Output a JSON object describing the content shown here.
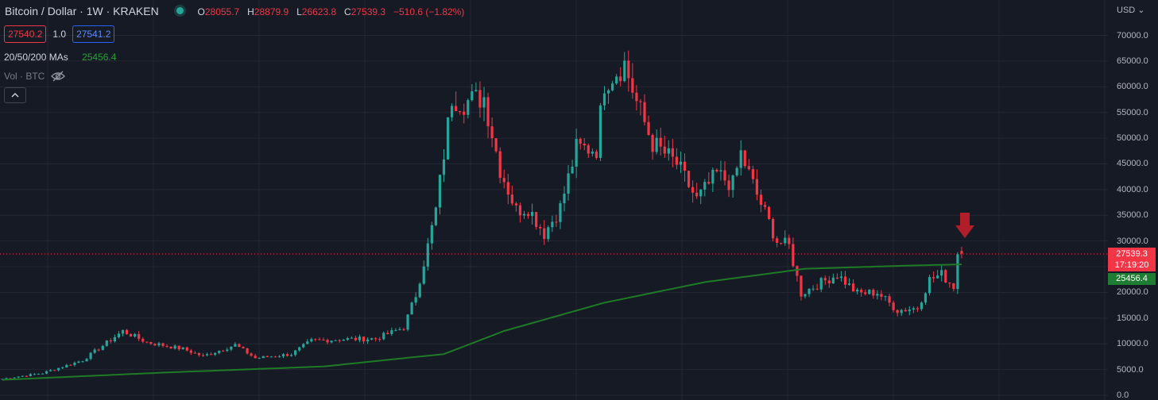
{
  "header": {
    "symbol": "Bitcoin / Dollar · 1W · KRAKEN",
    "open_label": "O",
    "open": "28055.7",
    "high_label": "H",
    "high": "28879.9",
    "low_label": "L",
    "low": "26623.8",
    "close_label": "C",
    "close": "27539.3",
    "change": "−510.6 (−1.82%)"
  },
  "quote": {
    "bid": "27540.2",
    "spread": "1.0",
    "ask": "27541.2"
  },
  "ma_indicator": {
    "label": "20/50/200 MAs",
    "value": "25456.4"
  },
  "volume": {
    "label": "Vol · BTC"
  },
  "axis": {
    "currency": "USD",
    "ticks": [
      "70000.0",
      "65000.0",
      "60000.0",
      "55000.0",
      "50000.0",
      "45000.0",
      "40000.0",
      "35000.0",
      "30000.0",
      "25000.0",
      "20000.0",
      "15000.0",
      "10000.0",
      "5000.0",
      "0.0"
    ]
  },
  "last_price": {
    "value": "27539.3",
    "countdown": "17:19:20"
  },
  "ma_last": "25456.4",
  "colors": {
    "up": "#26a69a",
    "down": "#f23645",
    "ma": "#1f7a26",
    "background": "#161a25",
    "grid": "#242733"
  },
  "icons": {
    "eye": "eye-off-icon",
    "collapse": "chevron-up-icon",
    "arrow": "arrow-down-icon"
  },
  "chart_data": {
    "type": "candlestick",
    "timeframe": "1W",
    "ylim": [
      0,
      70000
    ],
    "overlay": {
      "name": "20/50/200 MAs",
      "last": 25456.4
    },
    "trend": [
      [
        0,
        3200
      ],
      [
        10,
        4300
      ],
      [
        20,
        6800
      ],
      [
        30,
        12500
      ],
      [
        36,
        10300
      ],
      [
        45,
        9000
      ],
      [
        50,
        7600
      ],
      [
        58,
        9800
      ],
      [
        63,
        7200
      ],
      [
        72,
        8000
      ],
      [
        77,
        10600
      ],
      [
        85,
        10900
      ],
      [
        93,
        11000
      ],
      [
        100,
        13200
      ],
      [
        103,
        19500
      ],
      [
        106,
        29000
      ],
      [
        108,
        36000
      ],
      [
        112,
        58000
      ],
      [
        115,
        57000
      ],
      [
        120,
        58000
      ],
      [
        124,
        44000
      ],
      [
        128,
        36000
      ],
      [
        131,
        36500
      ],
      [
        135,
        31500
      ],
      [
        139,
        36500
      ],
      [
        143,
        48000
      ],
      [
        148,
        48000
      ],
      [
        150,
        61000
      ],
      [
        155,
        64500
      ],
      [
        158,
        57000
      ],
      [
        162,
        49000
      ],
      [
        168,
        45000
      ],
      [
        173,
        38000
      ],
      [
        178,
        43000
      ],
      [
        182,
        41000
      ],
      [
        184,
        47000
      ],
      [
        188,
        39000
      ],
      [
        193,
        30000
      ],
      [
        196,
        29000
      ],
      [
        199,
        19800
      ],
      [
        203,
        21500
      ],
      [
        208,
        23500
      ],
      [
        213,
        19800
      ],
      [
        218,
        20000
      ],
      [
        223,
        16500
      ],
      [
        228,
        17000
      ],
      [
        231,
        22500
      ],
      [
        234,
        23500
      ],
      [
        237,
        21200
      ],
      [
        238,
        27700
      ],
      [
        239,
        27539
      ]
    ],
    "ma_line": [
      [
        0,
        3000
      ],
      [
        40,
        4400
      ],
      [
        80,
        5600
      ],
      [
        110,
        8000
      ],
      [
        125,
        12500
      ],
      [
        150,
        18000
      ],
      [
        175,
        22000
      ],
      [
        200,
        24600
      ],
      [
        225,
        25200
      ],
      [
        239,
        25456
      ]
    ]
  }
}
